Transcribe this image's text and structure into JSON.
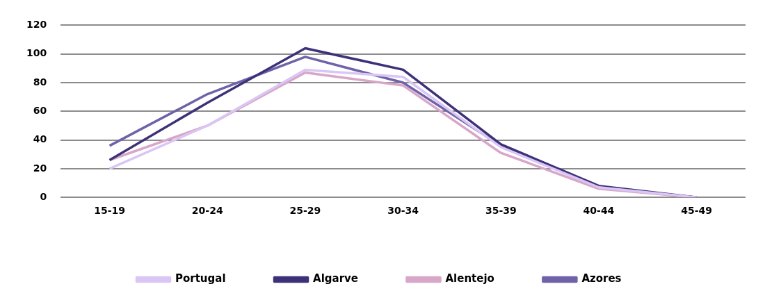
{
  "chart_data": {
    "type": "line",
    "categories": [
      "15-19",
      "20-24",
      "25-29",
      "30-34",
      "35-39",
      "40-44",
      "45-49"
    ],
    "series": [
      {
        "name": "Portugal",
        "color": "#d9c6f5",
        "values": [
          20,
          50,
          89,
          84,
          35,
          7,
          0
        ]
      },
      {
        "name": "Algarve",
        "color": "#3d3278",
        "values": [
          26,
          66,
          104,
          89,
          37,
          8,
          0
        ]
      },
      {
        "name": "Alentejo",
        "color": "#d8a6c8",
        "values": [
          26,
          50,
          87,
          78,
          31,
          6,
          0
        ]
      },
      {
        "name": "Azores",
        "color": "#6f62a8",
        "values": [
          36,
          72,
          98,
          80,
          36,
          7,
          0
        ]
      }
    ],
    "ylim": [
      0,
      120
    ],
    "yticks": [
      0,
      20,
      40,
      60,
      80,
      100,
      120
    ],
    "grid": "y",
    "legend": "bottom",
    "marker": "none",
    "line_style": "solid"
  }
}
